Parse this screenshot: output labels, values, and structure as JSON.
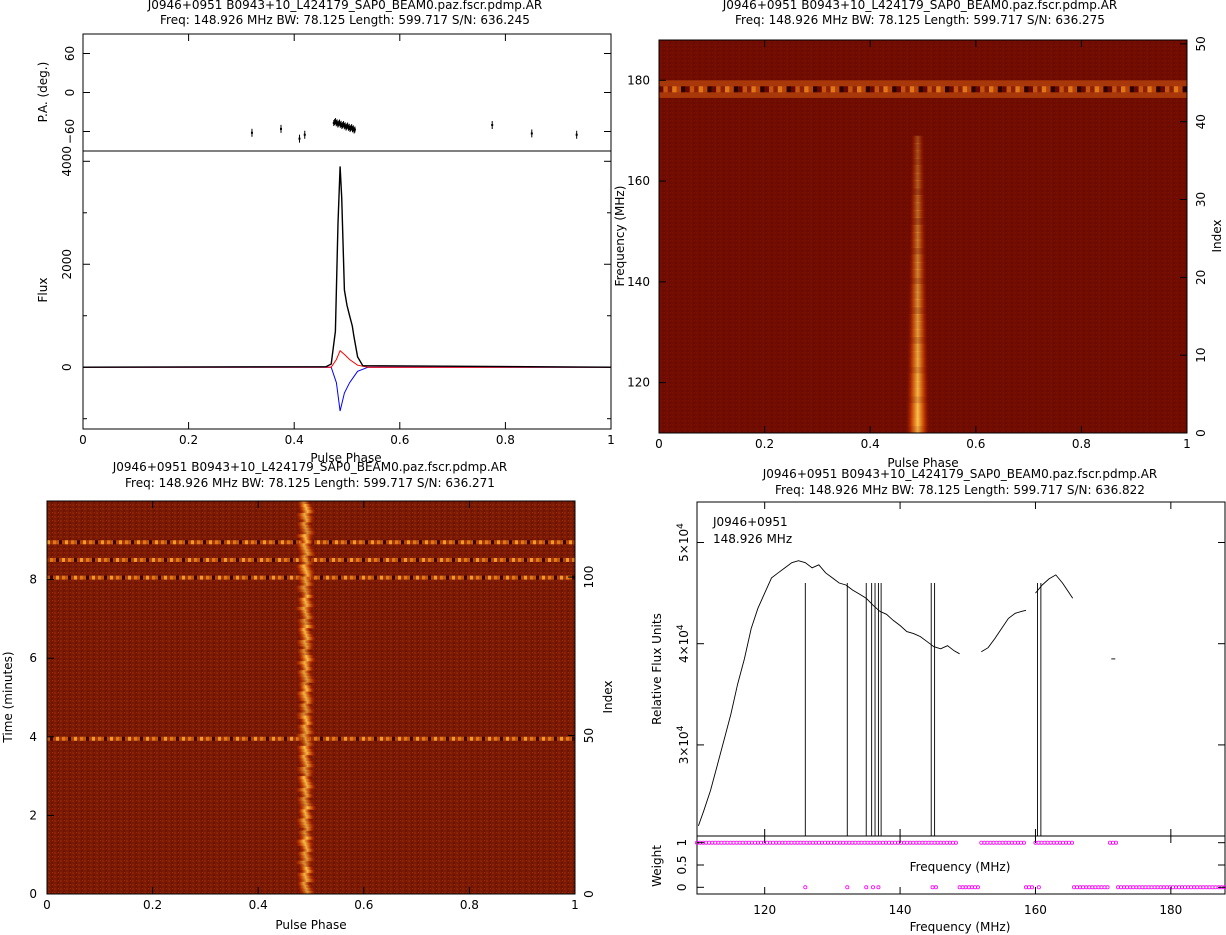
{
  "chart_data": [
    {
      "id": "profile",
      "type": "line",
      "title": "J0946+0951  B0943+10_L424179_SAP0_BEAM0.paz.fscr.pdmp.AR",
      "subtitle": "Freq:  148.926  MHz  BW:  78.125  Length:  599.717  S/N:  636.245",
      "pa_panel": {
        "ylabel": "P.A. (deg.)",
        "ylim": [
          -90,
          90
        ],
        "yticks": [
          "60",
          "0",
          "−60"
        ],
        "points": [
          {
            "x": 0.32,
            "y": -62
          },
          {
            "x": 0.375,
            "y": -56
          },
          {
            "x": 0.41,
            "y": -71
          },
          {
            "x": 0.42,
            "y": -65
          },
          {
            "x": 0.775,
            "y": -50
          },
          {
            "x": 0.85,
            "y": -63
          },
          {
            "x": 0.935,
            "y": -65
          }
        ],
        "cluster": {
          "x_start": 0.475,
          "x_end": 0.515,
          "y_start": -45,
          "y_end": -57
        }
      },
      "flux_panel": {
        "ylabel": "Flux",
        "ylim": [
          -1200,
          4200
        ],
        "yticks": [
          "4000",
          "2000",
          "0"
        ],
        "xlabel": "Pulse Phase",
        "xticks": [
          "0",
          "0.2",
          "0.4",
          "0.6",
          "0.8",
          "1"
        ],
        "series": [
          {
            "color": "#000000",
            "points": [
              [
                0,
                0
              ],
              [
                0.46,
                10
              ],
              [
                0.47,
                60
              ],
              [
                0.478,
                700
              ],
              [
                0.483,
                2800
              ],
              [
                0.487,
                3900
              ],
              [
                0.49,
                3300
              ],
              [
                0.495,
                1500
              ],
              [
                0.5,
                1200
              ],
              [
                0.505,
                1000
              ],
              [
                0.51,
                800
              ],
              [
                0.513,
                600
              ],
              [
                0.52,
                200
              ],
              [
                0.53,
                30
              ],
              [
                1,
                0
              ]
            ]
          },
          {
            "color": "#ff0000",
            "points": [
              [
                0,
                0
              ],
              [
                0.47,
                0
              ],
              [
                0.48,
                150
              ],
              [
                0.487,
                320
              ],
              [
                0.495,
                250
              ],
              [
                0.505,
                150
              ],
              [
                0.52,
                40
              ],
              [
                0.54,
                0
              ],
              [
                1,
                0
              ]
            ]
          },
          {
            "color": "#0000ff",
            "points": [
              [
                0,
                0
              ],
              [
                0.47,
                0
              ],
              [
                0.48,
                -300
              ],
              [
                0.487,
                -850
              ],
              [
                0.495,
                -500
              ],
              [
                0.505,
                -300
              ],
              [
                0.52,
                -80
              ],
              [
                0.54,
                0
              ],
              [
                1,
                0
              ]
            ]
          }
        ]
      }
    },
    {
      "id": "freq-phase",
      "type": "heatmap",
      "title": "J0946+0951  B0943+10_L424179_SAP0_BEAM0.paz.fscr.pdmp.AR",
      "subtitle": "Freq:  148.926  MHz  BW:  78.125  Length:  599.717  S/N:  636.275",
      "xlabel": "Pulse Phase",
      "ylabel": "Frequency (MHz)",
      "y2label": "Index",
      "xticks": [
        "0",
        "0.2",
        "0.4",
        "0.6",
        "0.8",
        "1"
      ],
      "yticks": [
        "120",
        "140",
        "160",
        "180"
      ],
      "y2ticks": [
        "0",
        "10",
        "20",
        "30",
        "40",
        "50"
      ],
      "ylim": [
        110,
        188
      ],
      "pulse_phase": 0.49,
      "pulse_freq_range": [
        110,
        169
      ],
      "rfi_band_mhz": [
        176.5,
        180
      ]
    },
    {
      "id": "time-phase",
      "type": "heatmap",
      "title": "J0946+0951  B0943+10_L424179_SAP0_BEAM0.paz.fscr.pdmp.AR",
      "subtitle": "Freq:  148.926  MHz  BW:  78.125  Length:  599.717  S/N:  636.271",
      "xlabel": "Pulse Phase",
      "ylabel": "Time (minutes)",
      "y2label": "Index",
      "xticks": [
        "0",
        "0.2",
        "0.4",
        "0.6",
        "0.8",
        "1"
      ],
      "yticks": [
        "0",
        "2",
        "4",
        "6",
        "8"
      ],
      "y2ticks": [
        "0",
        "50",
        "100"
      ],
      "ylim": [
        0,
        10
      ],
      "pulse_phase": 0.49,
      "rfi_times_min": [
        3.95,
        8.05,
        8.5,
        8.95
      ]
    },
    {
      "id": "bandpass",
      "type": "line",
      "title": "J0946+0951  B0943+10_L424179_SAP0_BEAM0.paz.fscr.pdmp.AR",
      "subtitle": "Freq:  148.926  MHz  BW:  78.125  Length:  599.717  S/N:  636.822",
      "annotation": [
        "J0946+0951",
        "148.926  MHz"
      ],
      "ylabel": "Relative Flux Units",
      "xlabel": "Frequency (MHz)",
      "xticks": [
        "120",
        "140",
        "160",
        "180"
      ],
      "xlim": [
        110,
        188
      ],
      "ylim": [
        21000,
        54000
      ],
      "yticks": [
        {
          "value": 30000,
          "mant": "3×10",
          "exp": "4"
        },
        {
          "value": 40000,
          "mant": "4×10",
          "exp": "4"
        },
        {
          "value": 50000,
          "mant": "5×10",
          "exp": "4"
        }
      ],
      "points": [
        [
          110.2,
          22000
        ],
        [
          111,
          23500
        ],
        [
          112,
          25500
        ],
        [
          113,
          28000
        ],
        [
          114,
          30500
        ],
        [
          115,
          33000
        ],
        [
          116,
          36000
        ],
        [
          117,
          38500
        ],
        [
          118,
          41500
        ],
        [
          119,
          43500
        ],
        [
          120,
          45000
        ],
        [
          121,
          46500
        ],
        [
          122,
          47000
        ],
        [
          123,
          47500
        ],
        [
          124,
          48000
        ],
        [
          125,
          48200
        ],
        [
          126,
          48000
        ],
        [
          127,
          47500
        ],
        [
          128,
          47800
        ],
        [
          129,
          47000
        ],
        [
          130,
          46500
        ],
        [
          131,
          46000
        ],
        [
          132,
          45800
        ],
        [
          133,
          45300
        ],
        [
          134,
          44900
        ],
        [
          135,
          44500
        ],
        [
          136,
          43800
        ],
        [
          137,
          43200
        ],
        [
          138,
          42900
        ],
        [
          139,
          42300
        ],
        [
          140,
          41800
        ],
        [
          141,
          41200
        ],
        [
          142,
          41000
        ],
        [
          143,
          40700
        ],
        [
          144,
          40200
        ],
        [
          145,
          39700
        ],
        [
          146,
          39500
        ],
        [
          147,
          39800
        ],
        [
          148,
          39300
        ],
        [
          148.8,
          39000
        ],
        [
          149.3,
          null
        ],
        [
          151.8,
          null
        ],
        [
          152,
          39200
        ],
        [
          153,
          39600
        ],
        [
          154,
          40500
        ],
        [
          155,
          41500
        ],
        [
          156,
          42500
        ],
        [
          157,
          43000
        ],
        [
          158,
          43200
        ],
        [
          158.6,
          43300
        ],
        [
          158.8,
          null
        ],
        [
          159.8,
          null
        ],
        [
          160,
          45000
        ],
        [
          161,
          45800
        ],
        [
          162,
          46400
        ],
        [
          163,
          46800
        ],
        [
          164,
          46000
        ],
        [
          165,
          45000
        ],
        [
          165.5,
          44500
        ],
        [
          165.7,
          null
        ],
        [
          171,
          null
        ],
        [
          171.2,
          38500
        ],
        [
          171.8,
          38500
        ],
        [
          172,
          null
        ]
      ],
      "dropouts_mhz": [
        126.0,
        132.2,
        135.0,
        135.8,
        136.3,
        136.8,
        137.2,
        144.6,
        145.1,
        160.3,
        160.8
      ],
      "weight_panel": {
        "ylabel": "Weight",
        "yticks": [
          "0",
          "0.5",
          "1"
        ],
        "one_ranges": [
          [
            110,
            148.6
          ],
          [
            152,
            158.5
          ],
          [
            160,
            165.5
          ],
          [
            171,
            172
          ]
        ],
        "zero_ranges": [
          [
            148.8,
            151.8
          ],
          [
            158.6,
            159.8
          ],
          [
            165.7,
            170.8
          ],
          [
            172.2,
            188
          ]
        ],
        "zero_isolated": [
          126.0,
          132.2,
          135.0,
          136.0,
          136.8,
          144.8,
          145.3,
          160.5
        ]
      }
    }
  ]
}
